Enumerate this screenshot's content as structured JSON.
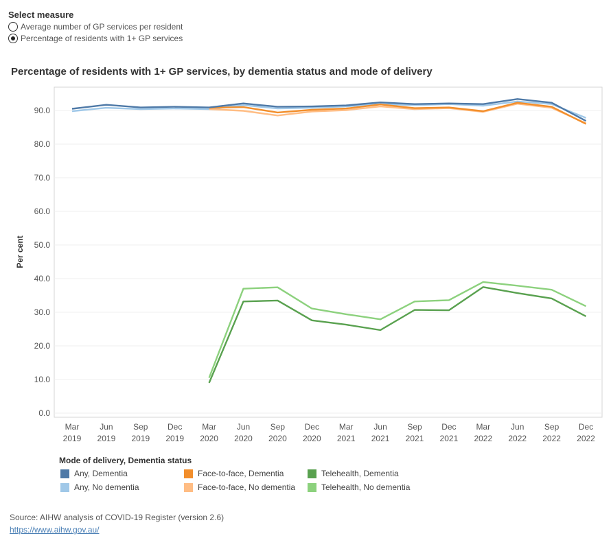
{
  "controls": {
    "title": "Select measure",
    "options": [
      {
        "label": "Average number of GP services per resident",
        "selected": false
      },
      {
        "label": "Percentage of residents with 1+ GP services",
        "selected": true
      }
    ]
  },
  "chart_data": {
    "type": "line",
    "title": "Percentage of residents with 1+ GP services, by dementia status and mode of delivery",
    "ylabel": "Per cent",
    "xlabel": "",
    "ylim": [
      0,
      95
    ],
    "yticks": [
      "0.0",
      "10.0",
      "20.0",
      "30.0",
      "40.0",
      "50.0",
      "60.0",
      "70.0",
      "80.0",
      "90.0"
    ],
    "ytick_values": [
      0,
      10,
      20,
      30,
      40,
      50,
      60,
      70,
      80,
      90
    ],
    "grid": true,
    "categories": [
      {
        "month": "Mar",
        "year": "2019"
      },
      {
        "month": "Jun",
        "year": "2019"
      },
      {
        "month": "Sep",
        "year": "2019"
      },
      {
        "month": "Dec",
        "year": "2019"
      },
      {
        "month": "Mar",
        "year": "2020"
      },
      {
        "month": "Jun",
        "year": "2020"
      },
      {
        "month": "Sep",
        "year": "2020"
      },
      {
        "month": "Dec",
        "year": "2020"
      },
      {
        "month": "Mar",
        "year": "2021"
      },
      {
        "month": "Jun",
        "year": "2021"
      },
      {
        "month": "Sep",
        "year": "2021"
      },
      {
        "month": "Dec",
        "year": "2021"
      },
      {
        "month": "Mar",
        "year": "2022"
      },
      {
        "month": "Jun",
        "year": "2022"
      },
      {
        "month": "Sep",
        "year": "2022"
      },
      {
        "month": "Dec",
        "year": "2022"
      }
    ],
    "legend_title": "Mode of delivery, Dementia status",
    "legend_placement": "bottom",
    "series": [
      {
        "name": "Any, No dementia",
        "color": "#a0c8e8",
        "values": [
          89.8,
          90.8,
          90.4,
          90.6,
          90.4,
          91.6,
          90.6,
          90.8,
          91.2,
          91.9,
          91.6,
          91.9,
          91.4,
          92.7,
          91.9,
          87.8
        ]
      },
      {
        "name": "Face-to-face, No dementia",
        "color": "#ffbd84",
        "values": [
          null,
          null,
          null,
          null,
          90.4,
          89.9,
          88.5,
          89.7,
          90.1,
          91.2,
          90.4,
          90.7,
          89.6,
          92.0,
          90.8,
          86.2
        ]
      },
      {
        "name": "Face-to-face, Dementia",
        "color": "#f28e2b",
        "values": [
          null,
          null,
          null,
          null,
          90.8,
          91.0,
          89.4,
          90.2,
          90.6,
          91.8,
          90.7,
          90.9,
          89.8,
          92.3,
          91.1,
          86.0
        ]
      },
      {
        "name": "Any, Dementia",
        "color": "#4e79a7",
        "values": [
          90.5,
          91.7,
          90.9,
          91.1,
          90.9,
          92.1,
          91.1,
          91.2,
          91.5,
          92.4,
          91.9,
          92.1,
          91.9,
          93.4,
          92.3,
          86.9
        ]
      },
      {
        "name": "Telehealth, No dementia",
        "color": "#8cd17d",
        "values": [
          null,
          null,
          null,
          null,
          10.5,
          37.0,
          37.4,
          31.1,
          29.4,
          27.9,
          33.2,
          33.6,
          39.0,
          37.9,
          36.7,
          31.8
        ]
      },
      {
        "name": "Telehealth, Dementia",
        "color": "#59a14f",
        "values": [
          null,
          null,
          null,
          null,
          9.0,
          33.2,
          33.5,
          27.6,
          26.3,
          24.7,
          30.7,
          30.6,
          37.5,
          35.7,
          34.1,
          28.8
        ]
      }
    ]
  },
  "legend": [
    {
      "label": "Any, Dementia",
      "color": "#4e79a7"
    },
    {
      "label": "Any, No dementia",
      "color": "#a0c8e8"
    },
    {
      "label": "Face-to-face, Dementia",
      "color": "#f28e2b"
    },
    {
      "label": "Face-to-face, No dementia",
      "color": "#ffbd84"
    },
    {
      "label": "Telehealth, Dementia",
      "color": "#59a14f"
    },
    {
      "label": "Telehealth, No dementia",
      "color": "#8cd17d"
    }
  ],
  "footer": {
    "source": "Source: AIHW analysis of COVID-19 Register (version 2.6)",
    "link": "https://www.aihw.gov.au/"
  }
}
